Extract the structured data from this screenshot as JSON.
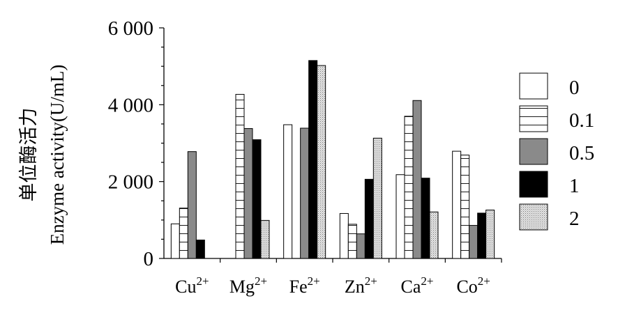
{
  "chart_data": {
    "type": "bar",
    "ylabel_cn": "单位酶活力",
    "ylabel_en": "Enzyme activity(U/mL)",
    "ylim": [
      0,
      6000
    ],
    "yticks": [
      {
        "value": 0,
        "label": "0"
      },
      {
        "value": 2000,
        "label": "2 000"
      },
      {
        "value": 4000,
        "label": "4 000"
      },
      {
        "value": 6000,
        "label": "6 000"
      }
    ],
    "categories": [
      {
        "base": "Cu",
        "sup": "2+"
      },
      {
        "base": "Mg",
        "sup": "2+"
      },
      {
        "base": "Fe",
        "sup": "2+"
      },
      {
        "base": "Zn",
        "sup": "2+"
      },
      {
        "base": "Ca",
        "sup": "2+"
      },
      {
        "base": "Co",
        "sup": "2+"
      }
    ],
    "series": [
      {
        "name": "0",
        "pattern": "white",
        "values": [
          900,
          0,
          3480,
          1170,
          2180,
          2790
        ]
      },
      {
        "name": "0.1",
        "pattern": "hlines",
        "values": [
          1310,
          4270,
          0,
          890,
          3700,
          2690
        ]
      },
      {
        "name": "0.5",
        "pattern": "gray",
        "values": [
          2780,
          3380,
          3390,
          640,
          4110,
          860
        ]
      },
      {
        "name": "1",
        "pattern": "black",
        "values": [
          480,
          3090,
          5150,
          2060,
          2090,
          1180
        ]
      },
      {
        "name": "2",
        "pattern": "dotted",
        "values": [
          0,
          990,
          5020,
          3130,
          1210,
          1260
        ]
      }
    ],
    "legend_position": "right",
    "grid": false
  }
}
